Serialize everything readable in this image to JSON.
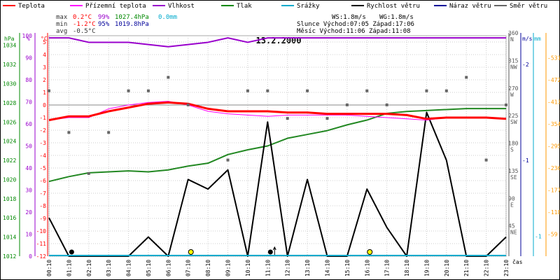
{
  "legend": [
    {
      "label": "Teplota",
      "color": "#ff0000"
    },
    {
      "label": "Přízemní teplota",
      "color": "#ff00ff"
    },
    {
      "label": "Vlhkost",
      "color": "#9900cc"
    },
    {
      "label": "Tlak",
      "color": "#008800"
    },
    {
      "label": "Srážky",
      "color": "#00aacc"
    },
    {
      "label": "Rychlost větru",
      "color": "#000000"
    },
    {
      "label": "Náraz větru",
      "color": "#000099"
    },
    {
      "label": "Směr větru",
      "color": "#666666"
    }
  ],
  "stats": {
    "max": {
      "label": "max",
      "temp": "0.2°C",
      "hum": "99%",
      "press": "1027.4hPa",
      "rain": "0.0mm"
    },
    "min": {
      "label": "min",
      "temp": "-1.2°C",
      "hum": "95%",
      "press": "1019.8hPa"
    },
    "avg": {
      "label": "avg",
      "temp": "-0.5°C"
    }
  },
  "sun_moon": {
    "ws": "WS:1.8m/s",
    "wg": "WG:1.8m/s",
    "sun": "Slunce Východ:07:05  Západ:17:06",
    "moon": "Měsíc  Východ:11:06  Západ:11:08"
  },
  "chart_data": {
    "type": "line",
    "title": "13.2.2000",
    "xlabel": "čas",
    "x": [
      "00:10",
      "01:10",
      "02:10",
      "03:10",
      "04:10",
      "05:10",
      "06:10",
      "07:10",
      "08:10",
      "09:10",
      "10:10",
      "11:10",
      "12:10",
      "13:10",
      "14:10",
      "15:10",
      "16:10",
      "17:10",
      "18:10",
      "19:10",
      "20:10",
      "21:10",
      "22:10",
      "23:10"
    ],
    "axes": {
      "pressure": {
        "label": "hPa",
        "ticks": [
          1012,
          1014,
          1016,
          1018,
          1020,
          1022,
          1024,
          1026,
          1028,
          1030,
          1032,
          1034
        ],
        "range": [
          1012,
          1035
        ]
      },
      "humidity": {
        "label": "%",
        "ticks": [
          0,
          10,
          20,
          30,
          40,
          50,
          60,
          70,
          80,
          90,
          100
        ],
        "range": [
          0,
          100
        ]
      },
      "temperature": {
        "label": "°C",
        "ticks": [
          -12,
          -11,
          -10,
          -9,
          -8,
          -7,
          -6,
          -5,
          -4,
          -3,
          -2,
          -1,
          0,
          1,
          2,
          3,
          4,
          5
        ],
        "range": [
          -12,
          5.5
        ]
      },
      "wind_dir": {
        "label": "°",
        "ticks": [
          [
            "360",
            "N"
          ],
          [
            "315",
            "NW"
          ],
          [
            "270",
            "W"
          ],
          [
            "225",
            "SW"
          ],
          [
            "180",
            "S"
          ],
          [
            "135",
            "SE"
          ],
          [
            "90",
            "E"
          ],
          [
            "45",
            "NE"
          ]
        ],
        "range": [
          0,
          360
        ]
      },
      "wind_speed": {
        "label": "m/s",
        "ticks": [
          1,
          2
        ],
        "range": [
          0,
          2.3
        ]
      },
      "rain": {
        "label": "mm",
        "ticks": [
          -1
        ],
        "range": [
          -1.1,
          0
        ]
      },
      "solar": {
        "ticks": [
          59,
          118,
          177,
          236,
          295,
          354,
          413,
          472,
          531
        ],
        "range": [
          0,
          590
        ]
      }
    },
    "series": [
      {
        "name": "Teplota",
        "color": "#ff0000",
        "width": 3,
        "axis": "temperature",
        "values": [
          -1.2,
          -0.9,
          -0.9,
          -0.5,
          -0.2,
          0.1,
          0.2,
          0.1,
          -0.3,
          -0.5,
          -0.5,
          -0.5,
          -0.6,
          -0.6,
          -0.7,
          -0.7,
          -0.7,
          -0.7,
          -0.8,
          -1.1,
          -1.0,
          -1.0,
          -1.0,
          -1.1
        ]
      },
      {
        "name": "Přízemní teplota",
        "color": "#ff00ff",
        "width": 1,
        "axis": "temperature",
        "values": [
          -1.2,
          -1.0,
          -1.0,
          -0.3,
          0.0,
          0.2,
          0.3,
          0.0,
          -0.5,
          -0.7,
          -0.8,
          -0.9,
          -0.8,
          -0.8,
          -0.8,
          -0.8,
          -0.9,
          -1.0,
          -1.1,
          -1.2,
          -1.0,
          -1.0,
          -1.0,
          -1.1
        ]
      },
      {
        "name": "Vlhkost",
        "color": "#9900cc",
        "width": 2,
        "axis": "humidity",
        "values": [
          99,
          99,
          97,
          97,
          97,
          96,
          95,
          96,
          97,
          99,
          97,
          99,
          99,
          99,
          99,
          99,
          99,
          99,
          99,
          99,
          99,
          99,
          99,
          99
        ]
      },
      {
        "name": "Tlak",
        "color": "#228822",
        "width": 2,
        "axis": "pressure",
        "values": [
          1019.8,
          1020.3,
          1020.7,
          1020.8,
          1020.9,
          1020.8,
          1021.0,
          1021.4,
          1021.7,
          1022.6,
          1023.1,
          1023.5,
          1024.3,
          1024.7,
          1025.1,
          1025.7,
          1026.2,
          1026.9,
          1027.1,
          1027.2,
          1027.3,
          1027.4,
          1027.4,
          1027.4
        ]
      },
      {
        "name": "Rychlost větru",
        "color": "#000000",
        "width": 2,
        "axis": "wind_speed",
        "values": [
          0.4,
          0.0,
          0.0,
          0.0,
          0.0,
          0.2,
          0.0,
          0.8,
          0.7,
          0.9,
          0.0,
          1.4,
          0.0,
          0.8,
          0.0,
          0.0,
          0.7,
          0.3,
          0.0,
          1.5,
          1.0,
          0.0,
          0.0,
          0.2
        ]
      },
      {
        "name": "Směr větru",
        "color": "#666666",
        "axis": "wind_dir",
        "marker": "square",
        "values": [
          270,
          202,
          135,
          202,
          270,
          270,
          292,
          247,
          null,
          157,
          270,
          270,
          225,
          270,
          225,
          247,
          270,
          247,
          null,
          270,
          270,
          292,
          157,
          247
        ]
      }
    ],
    "reference_line": {
      "axis": "temperature",
      "value": 0,
      "color": "#888888"
    },
    "markers": [
      {
        "type": "moon-new",
        "x": 1
      },
      {
        "type": "sun",
        "x": 7
      },
      {
        "type": "moon-new",
        "x": 11,
        "arrow": true
      },
      {
        "type": "sun",
        "x": 16
      }
    ]
  }
}
